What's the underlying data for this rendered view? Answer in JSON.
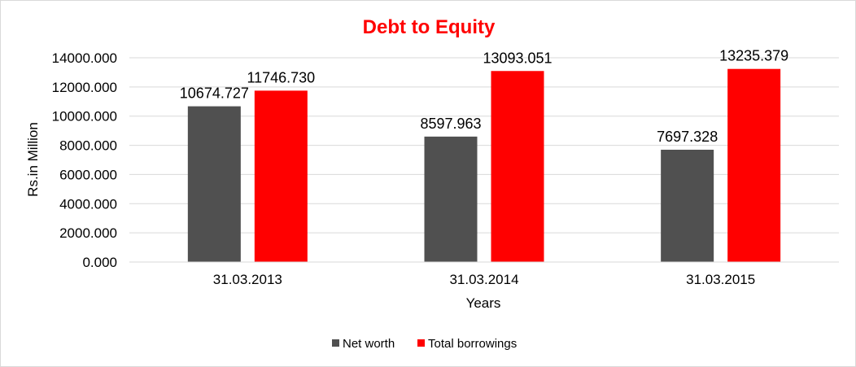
{
  "chart_data": {
    "type": "bar",
    "title": "Debt to Equity",
    "title_color": "#ff0000",
    "xlabel": "Years",
    "ylabel": "Rs.in Million",
    "categories": [
      "31.03.2013",
      "31.03.2014",
      "31.03.2015"
    ],
    "series": [
      {
        "name": "Net worth",
        "color": "#505050",
        "values": [
          10674.727,
          8597.963,
          7697.328
        ]
      },
      {
        "name": "Total borrowings",
        "color": "#ff0000",
        "values": [
          11746.73,
          13093.051,
          13235.379
        ]
      }
    ],
    "value_labels": [
      [
        "10674.727",
        "8597.963",
        "7697.328"
      ],
      [
        "11746.730",
        "13093.051",
        "13235.379"
      ]
    ],
    "ylim": [
      0,
      14000
    ],
    "yticks": [
      "0.000",
      "2000.000",
      "4000.000",
      "6000.000",
      "8000.000",
      "10000.000",
      "12000.000",
      "14000.000"
    ],
    "grid": true,
    "legend_position": "bottom"
  }
}
